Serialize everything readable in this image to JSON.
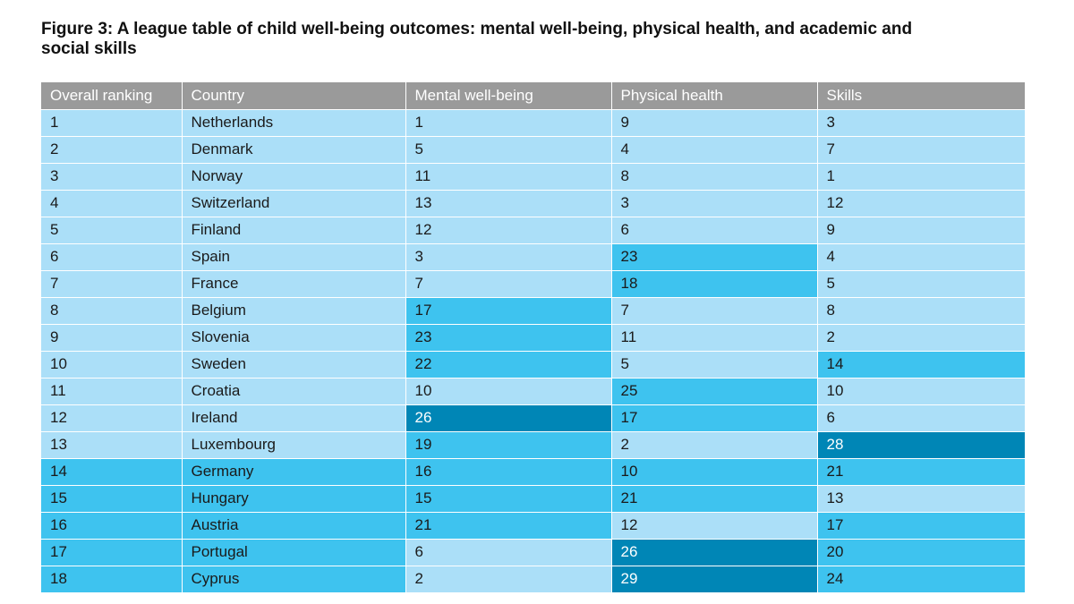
{
  "title": "Figure 3: A league table of child well-being outcomes: mental well-being, physical health, and academic and social skills",
  "colors": {
    "header_bg": "#9a9a9a",
    "tier_1": "#abdff8",
    "tier_2": "#3ec3ef",
    "tier_3": "#0086b6"
  },
  "chart_data": {
    "type": "table",
    "title": "Figure 3: A league table of child well-being outcomes: mental well-being, physical health, and academic and social skills",
    "columns": [
      "Overall ranking",
      "Country",
      "Mental well-being",
      "Physical health",
      "Skills"
    ],
    "rows": [
      {
        "rank": "1",
        "country": "Netherlands",
        "mental": "1",
        "physical": "9",
        "skills": "3",
        "tiers": [
          1,
          1,
          1,
          1,
          1
        ]
      },
      {
        "rank": "2",
        "country": "Denmark",
        "mental": "5",
        "physical": "4",
        "skills": "7",
        "tiers": [
          1,
          1,
          1,
          1,
          1
        ]
      },
      {
        "rank": "3",
        "country": "Norway",
        "mental": "11",
        "physical": "8",
        "skills": "1",
        "tiers": [
          1,
          1,
          1,
          1,
          1
        ]
      },
      {
        "rank": "4",
        "country": "Switzerland",
        "mental": "13",
        "physical": "3",
        "skills": "12",
        "tiers": [
          1,
          1,
          1,
          1,
          1
        ]
      },
      {
        "rank": "5",
        "country": "Finland",
        "mental": "12",
        "physical": "6",
        "skills": "9",
        "tiers": [
          1,
          1,
          1,
          1,
          1
        ]
      },
      {
        "rank": "6",
        "country": "Spain",
        "mental": "3",
        "physical": "23",
        "skills": "4",
        "tiers": [
          1,
          1,
          1,
          2,
          1
        ]
      },
      {
        "rank": "7",
        "country": "France",
        "mental": "7",
        "physical": "18",
        "skills": "5",
        "tiers": [
          1,
          1,
          1,
          2,
          1
        ]
      },
      {
        "rank": "8",
        "country": "Belgium",
        "mental": "17",
        "physical": "7",
        "skills": "8",
        "tiers": [
          1,
          1,
          2,
          1,
          1
        ]
      },
      {
        "rank": "9",
        "country": "Slovenia",
        "mental": "23",
        "physical": "11",
        "skills": "2",
        "tiers": [
          1,
          1,
          2,
          1,
          1
        ]
      },
      {
        "rank": "10",
        "country": "Sweden",
        "mental": "22",
        "physical": "5",
        "skills": "14",
        "tiers": [
          1,
          1,
          2,
          1,
          2
        ]
      },
      {
        "rank": "11",
        "country": "Croatia",
        "mental": "10",
        "physical": "25",
        "skills": "10",
        "tiers": [
          1,
          1,
          1,
          2,
          1
        ]
      },
      {
        "rank": "12",
        "country": "Ireland",
        "mental": "26",
        "physical": "17",
        "skills": "6",
        "tiers": [
          1,
          1,
          3,
          2,
          1
        ]
      },
      {
        "rank": "13",
        "country": "Luxembourg",
        "mental": "19",
        "physical": "2",
        "skills": "28",
        "tiers": [
          1,
          1,
          2,
          1,
          3
        ]
      },
      {
        "rank": "14",
        "country": "Germany",
        "mental": "16",
        "physical": "10",
        "skills": "21",
        "tiers": [
          2,
          2,
          2,
          2,
          2
        ]
      },
      {
        "rank": "15",
        "country": "Hungary",
        "mental": "15",
        "physical": "21",
        "skills": "13",
        "tiers": [
          2,
          2,
          2,
          2,
          1
        ]
      },
      {
        "rank": "16",
        "country": "Austria",
        "mental": "21",
        "physical": "12",
        "skills": "17",
        "tiers": [
          2,
          2,
          2,
          1,
          2
        ]
      },
      {
        "rank": "17",
        "country": "Portugal",
        "mental": "6",
        "physical": "26",
        "skills": "20",
        "tiers": [
          2,
          2,
          1,
          3,
          2
        ]
      },
      {
        "rank": "18",
        "country": "Cyprus",
        "mental": "2",
        "physical": "29",
        "skills": "24",
        "tiers": [
          2,
          2,
          1,
          3,
          2
        ]
      }
    ]
  }
}
